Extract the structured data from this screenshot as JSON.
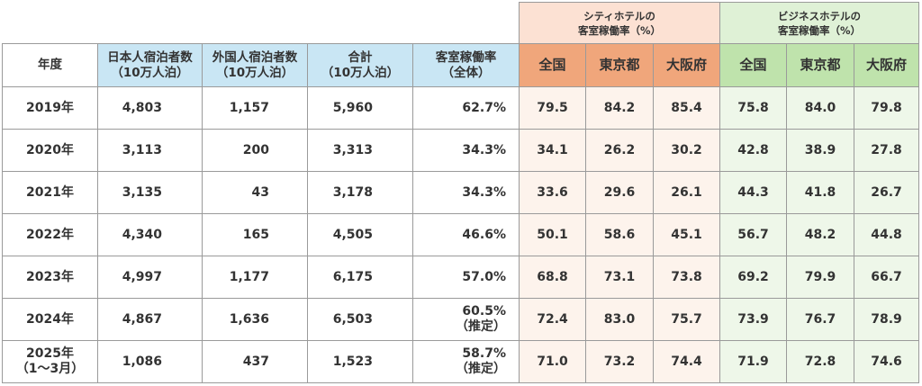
{
  "groups": {
    "city_line1": "シティホテルの",
    "city_line2": "客室稼働率（%）",
    "biz_line1": "ビジネスホテルの",
    "biz_line2": "客室稼働率（%）"
  },
  "headers": {
    "year": "年度",
    "japanese_1": "日本人宿泊者数",
    "japanese_2": "（10万人泊）",
    "foreign_1": "外国人宿泊者数",
    "foreign_2": "（10万人泊）",
    "total_1": "合計",
    "total_2": "（10万人泊）",
    "rate_1": "客室稼働率",
    "rate_2": "（全体）",
    "city_national": "全国",
    "city_tokyo": "東京都",
    "city_osaka": "大阪府",
    "biz_national": "全国",
    "biz_tokyo": "東京都",
    "biz_osaka": "大阪府"
  },
  "rows": [
    {
      "year": "2019年",
      "year2": "",
      "japanese": "4,803",
      "foreign": "1,157",
      "total": "5,960",
      "rate": "62.7%",
      "rate_note": "",
      "city_nat": "79.5",
      "city_tok": "84.2",
      "city_osa": "85.4",
      "biz_nat": "75.8",
      "biz_tok": "84.0",
      "biz_osa": "79.8"
    },
    {
      "year": "2020年",
      "year2": "",
      "japanese": "3,113",
      "foreign": "200",
      "total": "3,313",
      "rate": "34.3%",
      "rate_note": "",
      "city_nat": "34.1",
      "city_tok": "26.2",
      "city_osa": "30.2",
      "biz_nat": "42.8",
      "biz_tok": "38.9",
      "biz_osa": "27.8"
    },
    {
      "year": "2021年",
      "year2": "",
      "japanese": "3,135",
      "foreign": "43",
      "total": "3,178",
      "rate": "34.3%",
      "rate_note": "",
      "city_nat": "33.6",
      "city_tok": "29.6",
      "city_osa": "26.1",
      "biz_nat": "44.3",
      "biz_tok": "41.8",
      "biz_osa": "26.7"
    },
    {
      "year": "2022年",
      "year2": "",
      "japanese": "4,340",
      "foreign": "165",
      "total": "4,505",
      "rate": "46.6%",
      "rate_note": "",
      "city_nat": "50.1",
      "city_tok": "58.6",
      "city_osa": "45.1",
      "biz_nat": "56.7",
      "biz_tok": "48.2",
      "biz_osa": "44.8"
    },
    {
      "year": "2023年",
      "year2": "",
      "japanese": "4,997",
      "foreign": "1,177",
      "total": "6,175",
      "rate": "57.0%",
      "rate_note": "",
      "city_nat": "68.8",
      "city_tok": "73.1",
      "city_osa": "73.8",
      "biz_nat": "69.2",
      "biz_tok": "79.9",
      "biz_osa": "66.7"
    },
    {
      "year": "2024年",
      "year2": "",
      "japanese": "4,867",
      "foreign": "1,636",
      "total": "6,503",
      "rate": "60.5%",
      "rate_note": "（推定）",
      "city_nat": "72.4",
      "city_tok": "83.0",
      "city_osa": "75.7",
      "biz_nat": "73.9",
      "biz_tok": "76.7",
      "biz_osa": "78.9"
    },
    {
      "year": "2025年",
      "year2": "（1〜3月）",
      "japanese": "1,086",
      "foreign": "437",
      "total": "1,523",
      "rate": "58.7%",
      "rate_note": "（推定）",
      "city_nat": "71.0",
      "city_tok": "73.2",
      "city_osa": "74.4",
      "biz_nat": "71.9",
      "biz_tok": "72.8",
      "biz_osa": "74.6"
    }
  ]
}
